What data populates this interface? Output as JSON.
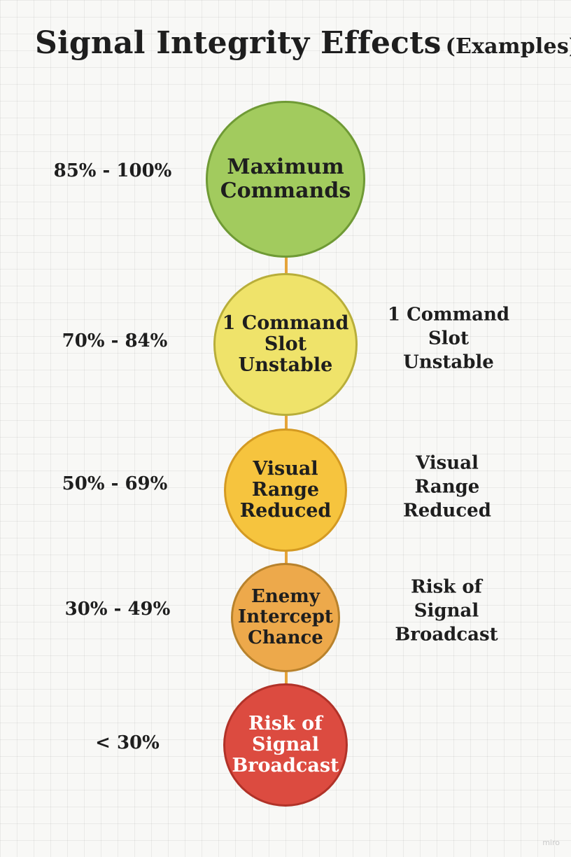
{
  "title": {
    "main": "Signal Integrity Effects",
    "sub": "(Examples)"
  },
  "levels": [
    {
      "range": "85% - 100%",
      "circle_text": "Maximum\nCommands",
      "note": "",
      "fill": "#a2cb5e",
      "border": "#6f9a35",
      "text_color": "#1e1e1e"
    },
    {
      "range": "70% - 84%",
      "circle_text": "1 Command\nSlot\nUnstable",
      "note": "1 Command\nSlot Unstable",
      "fill": "#efe36a",
      "border": "#b8ae3a",
      "text_color": "#1e1e1e"
    },
    {
      "range": "50% - 69%",
      "circle_text": "Visual\nRange\nReduced",
      "note": "Visual Range\nReduced",
      "fill": "#f6c43e",
      "border": "#d49a22",
      "text_color": "#1e1e1e"
    },
    {
      "range": "30% - 49%",
      "circle_text": "Enemy\nIntercept\nChance",
      "note": "Risk of\nSignal Broadcast",
      "fill": "#eda94b",
      "border": "#b8822c",
      "text_color": "#1e1e1e"
    },
    {
      "range": "< 30%",
      "circle_text": "Risk of\nSignal\nBroadcast",
      "note": "",
      "fill": "#dc4b40",
      "border": "#b13228",
      "text_color": "#ffffff"
    }
  ],
  "watermark": "miro"
}
